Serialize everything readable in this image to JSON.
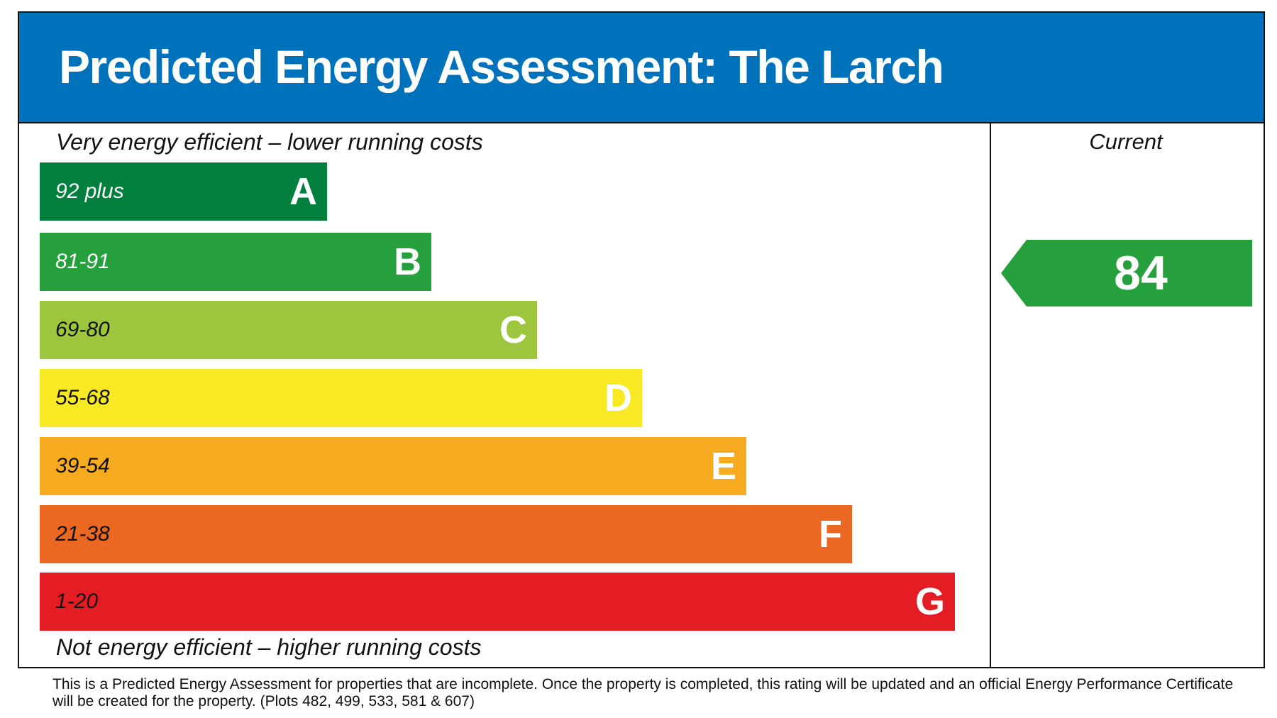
{
  "title": "Predicted Energy Assessment: The Larch",
  "top_label": "Very energy efficient – lower running costs",
  "bottom_label": "Not energy efficient – higher running costs",
  "current_label": "Current",
  "colors": {
    "header": "#0072bc",
    "current": "#26a03c"
  },
  "chart_data": {
    "type": "bar",
    "categories": [
      "A",
      "B",
      "C",
      "D",
      "E",
      "F",
      "G"
    ],
    "bands": [
      {
        "letter": "A",
        "range": "92 plus",
        "color": "#007f3d",
        "range_text_color": "#ffffff"
      },
      {
        "letter": "B",
        "range": "81-91",
        "color": "#26a03c",
        "range_text_color": "#ffffff"
      },
      {
        "letter": "C",
        "range": "69-80",
        "color": "#9dc53d",
        "range_text_color": "#111111"
      },
      {
        "letter": "D",
        "range": "55-68",
        "color": "#f7e923",
        "range_text_color": "#111111"
      },
      {
        "letter": "E",
        "range": "39-54",
        "color": "#f7ab20",
        "range_text_color": "#111111"
      },
      {
        "letter": "F",
        "range": "21-38",
        "color": "#eb6823",
        "range_text_color": "#111111"
      },
      {
        "letter": "G",
        "range": "1-20",
        "color": "#e31d23",
        "range_text_color": "#111111"
      }
    ],
    "current": {
      "value": "84",
      "band": "B"
    }
  },
  "footer": "This is a Predicted Energy Assessment for properties that are incomplete. Once the property is completed, this rating will be updated and an official Energy Performance Certificate will be created for the property. (Plots 482, 499, 533, 581 & 607)"
}
